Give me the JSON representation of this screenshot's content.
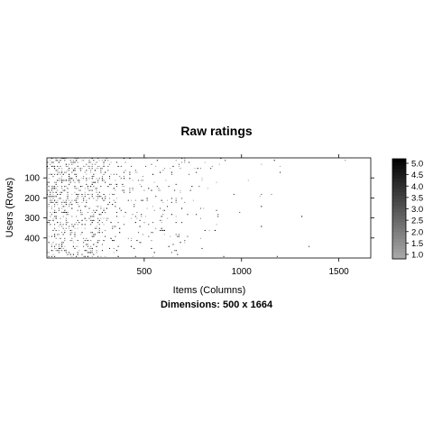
{
  "chart_data": {
    "type": "heatmap",
    "title": "Raw ratings",
    "xlabel": "Items (Columns)",
    "ylabel": "Users (Rows)",
    "sublabel": "Dimensions: 500 x 1664",
    "rows": 500,
    "columns": 1664,
    "xlim": [
      0,
      1664
    ],
    "ylim": [
      0,
      500
    ],
    "y_reversed": true,
    "x_ticks": [
      500,
      1000,
      1500
    ],
    "x_tick_labels": [
      "500",
      "1000",
      "1500"
    ],
    "y_ticks": [
      100,
      200,
      300,
      400
    ],
    "y_tick_labels": [
      "100",
      "200",
      "300",
      "400"
    ],
    "colorbar": {
      "values": [
        1.0,
        1.5,
        2.0,
        2.5,
        3.0,
        3.5,
        4.0,
        4.5,
        5.0
      ],
      "labels": [
        "1.0",
        "1.5",
        "2.0",
        "2.5",
        "3.0",
        "3.5",
        "4.0",
        "4.5",
        "5.0"
      ],
      "color_low": "#aaaaaa",
      "color_high": "#000000"
    },
    "density_profile": {
      "column_breakpoints": [
        0,
        100,
        300,
        400,
        700,
        900,
        1200,
        1664
      ],
      "density": [
        0.35,
        0.25,
        0.12,
        0.07,
        0.03,
        0.012,
        0.002
      ],
      "row_density_factor": "decreasing with row index"
    }
  }
}
